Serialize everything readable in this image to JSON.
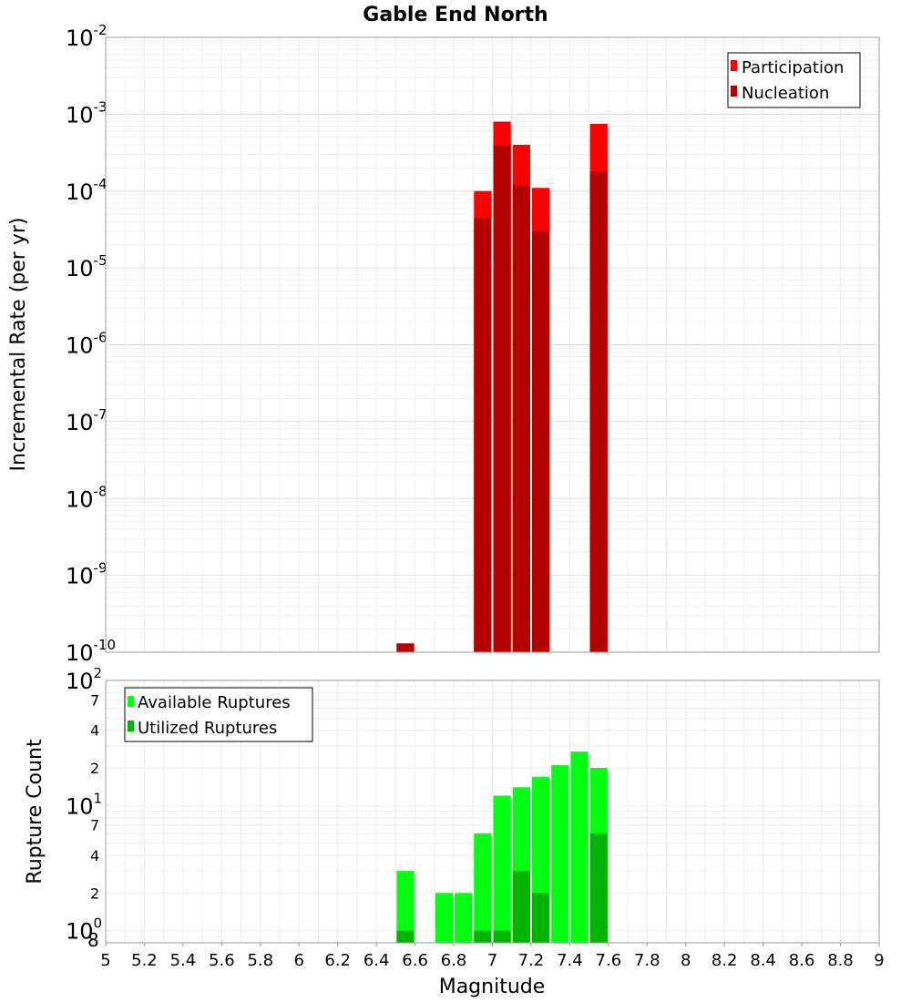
{
  "title": "Gable End North",
  "xlabel": "Magnitude",
  "xticks": [
    "5",
    "5.2",
    "5.4",
    "5.6",
    "5.8",
    "6",
    "6.2",
    "6.4",
    "6.6",
    "6.8",
    "7",
    "7.2",
    "7.4",
    "7.6",
    "7.8",
    "8",
    "8.2",
    "8.4",
    "8.6",
    "8.8",
    "9"
  ],
  "top_ylabel": "Incremental Rate (per yr)",
  "bottom_ylabel": "Rupture Count",
  "top_ticks": [
    {
      "base": "10",
      "exp": "-10"
    },
    {
      "base": "10",
      "exp": "-9"
    },
    {
      "base": "10",
      "exp": "-8"
    },
    {
      "base": "10",
      "exp": "-7"
    },
    {
      "base": "10",
      "exp": "-6"
    },
    {
      "base": "10",
      "exp": "-5"
    },
    {
      "base": "10",
      "exp": "-4"
    },
    {
      "base": "10",
      "exp": "-3"
    },
    {
      "base": "10",
      "exp": "-2"
    }
  ],
  "bottom_major_ticks": [
    {
      "base": "10",
      "exp": "0"
    },
    {
      "base": "10",
      "exp": "1"
    },
    {
      "base": "10",
      "exp": "2"
    }
  ],
  "bottom_minor_ticks": [
    {
      "label": "8",
      "value": 0.8
    },
    {
      "label": "2",
      "value": 2
    },
    {
      "label": "4",
      "value": 4
    },
    {
      "label": "7",
      "value": 7
    },
    {
      "label": "2",
      "value": 20
    },
    {
      "label": "4",
      "value": 40
    },
    {
      "label": "7",
      "value": 70
    }
  ],
  "colors": {
    "participation": "#ff0000",
    "nucleation": "#b40000",
    "available": "#00ff11",
    "utilized": "#00b400"
  },
  "chart_data": [
    {
      "type": "bar",
      "title": "Gable End North",
      "xlabel": "Magnitude",
      "ylabel": "Incremental Rate (per yr)",
      "yscale": "log",
      "xlim": [
        5,
        9
      ],
      "ylim": [
        1e-10,
        0.01
      ],
      "bin_width": 0.1,
      "x": [
        6.55,
        6.95,
        7.05,
        7.15,
        7.25,
        7.55
      ],
      "series": [
        {
          "name": "Participation",
          "values": [
            1.3e-10,
            0.0001,
            0.0008,
            0.0004,
            0.00011,
            0.00075
          ]
        },
        {
          "name": "Nucleation",
          "values": [
            1.3e-10,
            4.5e-05,
            0.0004,
            0.00012,
            3e-05,
            0.00018
          ]
        }
      ],
      "legend": [
        "Participation",
        "Nucleation"
      ],
      "legend_position": "top-right",
      "grid": true
    },
    {
      "type": "bar",
      "xlabel": "Magnitude",
      "ylabel": "Rupture Count",
      "yscale": "log",
      "xlim": [
        5,
        9
      ],
      "ylim": [
        0.8,
        100
      ],
      "bin_width": 0.1,
      "x": [
        6.55,
        6.75,
        6.85,
        6.95,
        7.05,
        7.15,
        7.25,
        7.35,
        7.45,
        7.55
      ],
      "series": [
        {
          "name": "Available Ruptures",
          "values": [
            3,
            2,
            2,
            6,
            12,
            14,
            17,
            21,
            27,
            20
          ]
        },
        {
          "name": "Utilized Ruptures",
          "values": [
            1,
            0,
            0,
            1,
            1,
            3,
            2,
            0,
            0,
            6
          ]
        }
      ],
      "legend": [
        "Available Ruptures",
        "Utilized Ruptures"
      ],
      "legend_position": "top-left",
      "grid": true
    }
  ]
}
